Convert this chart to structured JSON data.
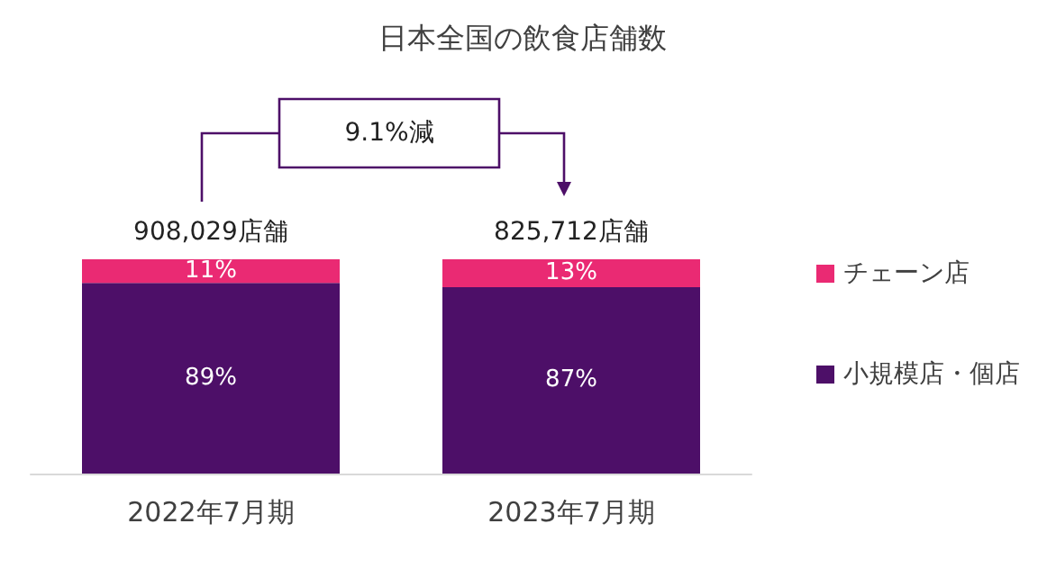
{
  "chart_data": {
    "type": "bar",
    "title": "日本全国の飲食店舗数",
    "categories": [
      "2022年7月期",
      "2023年7月期"
    ],
    "stacked": true,
    "legend": "right",
    "tick_labels": "x",
    "series": [
      {
        "name": "小規模店・個店",
        "color": "#4d0f68",
        "values": [
          89,
          87
        ],
        "value_labels": [
          "89%",
          "87%"
        ]
      },
      {
        "name": "チェーン店",
        "color": "#ea2a73",
        "values": [
          11,
          13
        ],
        "value_labels": [
          "11%",
          "13%"
        ]
      }
    ],
    "annotations": [
      "9.1%減",
      {
        "text": "908,029店舗",
        "x": "2022年7月期",
        "y": 100
      },
      {
        "text": "825,712店舗",
        "x": "2023年7月期",
        "y": 100
      }
    ]
  }
}
